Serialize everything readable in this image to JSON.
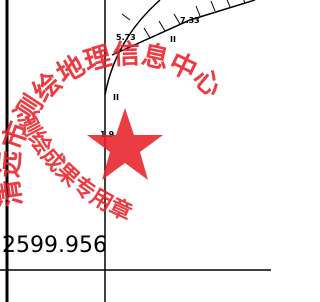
{
  "labels": [
    "5.73",
    "7.33",
    "II",
    "II",
    "1.9"
  ],
  "coordinate": "2599.956",
  "stamp": {
    "outer_text": "清远市测绘地理信息中心",
    "inner_text": "测绘成果专用章"
  }
}
